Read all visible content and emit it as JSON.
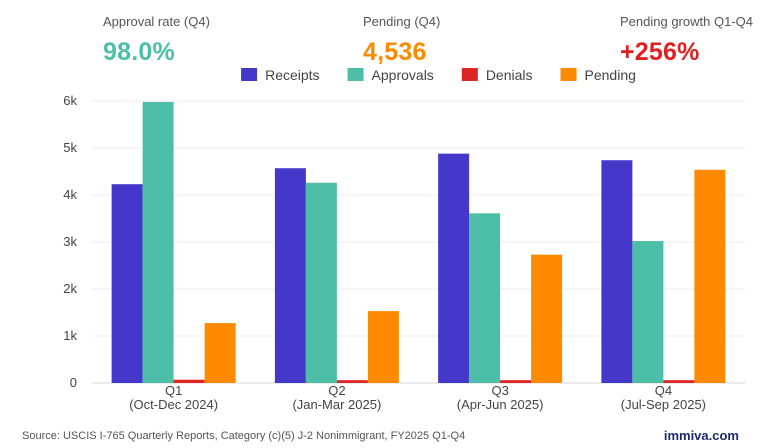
{
  "kpis": [
    {
      "label": "Approval rate (Q4)",
      "value": "98.0%",
      "color": "#4dbfa8"
    },
    {
      "label": "Pending (Q4)",
      "value": "4,536",
      "color": "#ff8a00"
    },
    {
      "label": "Pending growth Q1-Q4",
      "value": "+256%",
      "color": "#e02020"
    }
  ],
  "chart_data": {
    "type": "bar",
    "categories": [
      [
        "Q1",
        "(Oct-Dec 2024)"
      ],
      [
        "Q2",
        "(Jan-Mar 2025)"
      ],
      [
        "Q3",
        "(Apr-Jun 2025)"
      ],
      [
        "Q4",
        "(Jul-Sep 2025)"
      ]
    ],
    "series": [
      {
        "name": "Receipts",
        "color": "#4338ca",
        "values": [
          4230,
          4570,
          4880,
          4740
        ]
      },
      {
        "name": "Approvals",
        "color": "#4dbfa8",
        "values": [
          5980,
          4260,
          3610,
          3020
        ]
      },
      {
        "name": "Denials",
        "color": "#dc2626",
        "values": [
          70,
          60,
          60,
          60
        ]
      },
      {
        "name": "Pending",
        "color": "#ff8a00",
        "values": [
          1275,
          1530,
          2730,
          4536
        ]
      }
    ],
    "yticks": [
      "0",
      "1k",
      "2k",
      "3k",
      "4k",
      "5k",
      "6k"
    ],
    "ylim": [
      0,
      6000
    ],
    "grid": true,
    "legend_position": "top-center"
  },
  "footer": {
    "source": "Source: USCIS I-765 Quarterly Reports, Category (c)(5) J-2 Nonimmigrant, FY2025 Q1-Q4",
    "brand": "immiva.com"
  }
}
